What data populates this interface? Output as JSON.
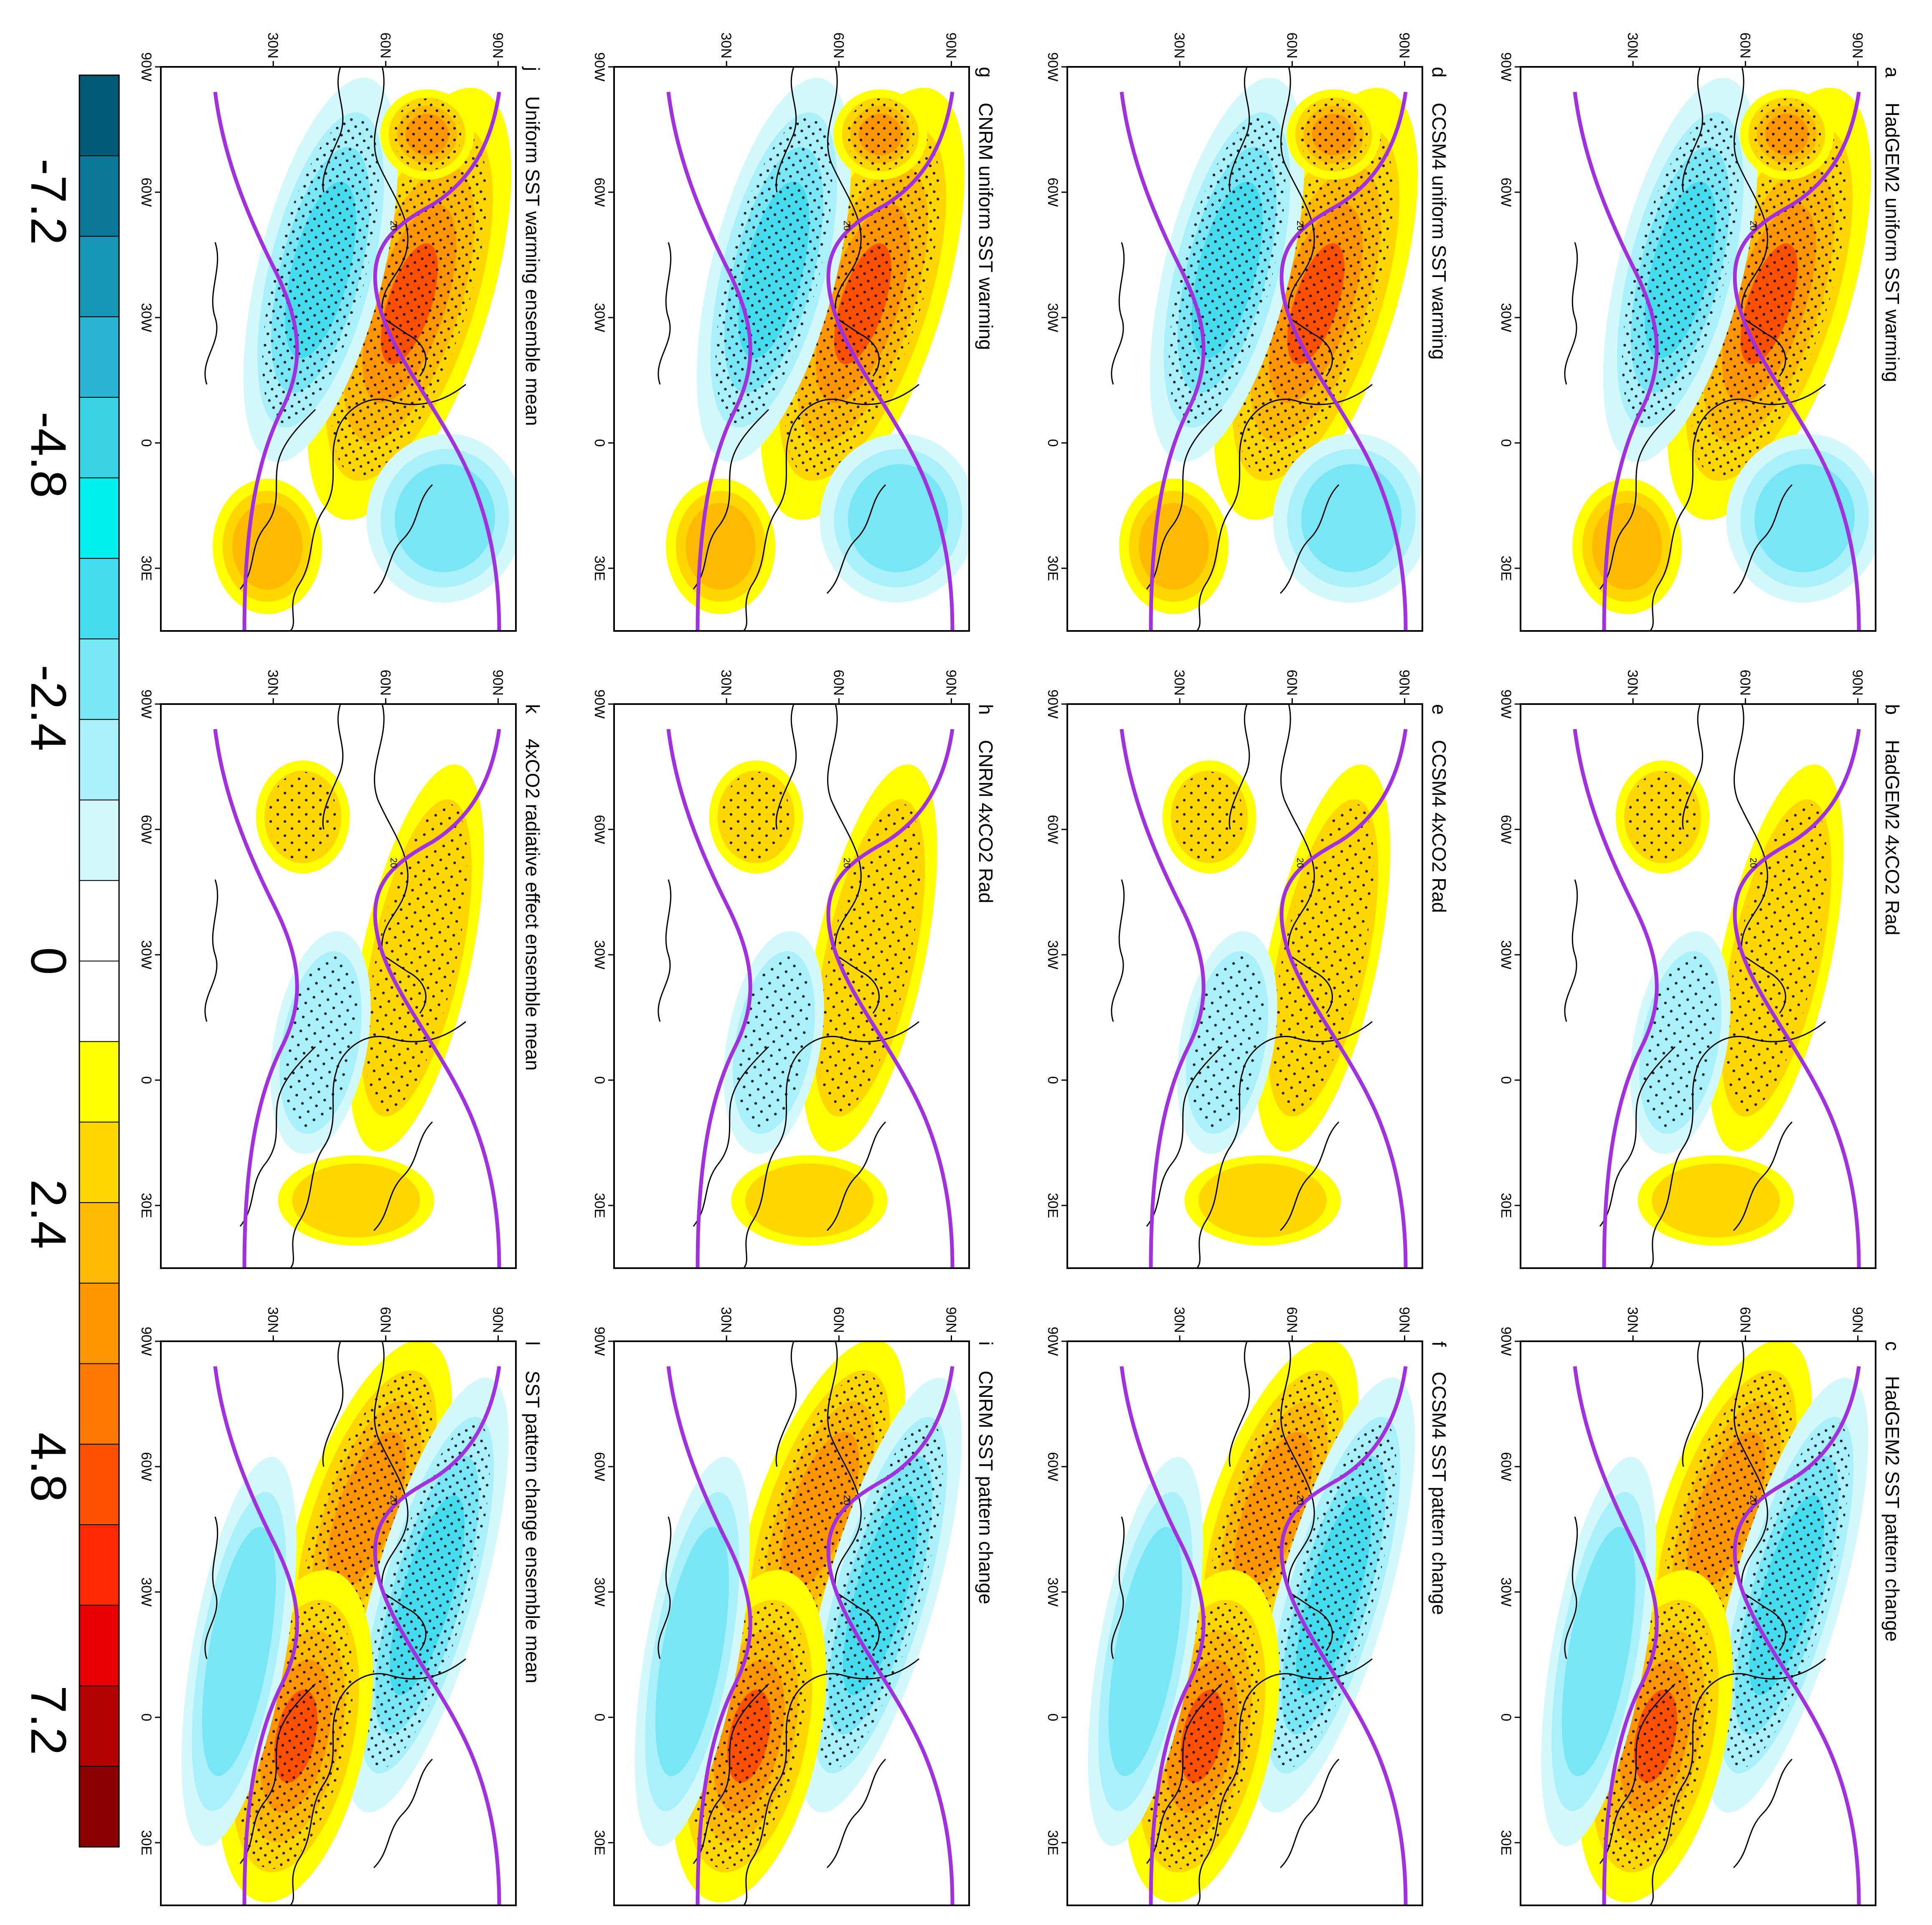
{
  "figure": {
    "orientation": "rotated 90 degrees clockwise",
    "rows": 4,
    "cols": 3
  },
  "chart_data": [
    {
      "type": "heatmap",
      "panel": "a",
      "title": "HadGEM2 uniform SST warming",
      "contour_label": "20",
      "lon_ticks": [
        "90W",
        "60W",
        "30W",
        "0",
        "30E"
      ],
      "lat_ticks": [
        "30N",
        "60N",
        "90N"
      ],
      "pattern": "uniform",
      "stippling": "dense"
    },
    {
      "type": "heatmap",
      "panel": "b",
      "title": "HadGEM2 4xCO2 Rad",
      "contour_label": "20",
      "lon_ticks": [
        "90W",
        "60W",
        "30W",
        "0",
        "30E"
      ],
      "lat_ticks": [
        "30N",
        "60N",
        "90N"
      ],
      "pattern": "rad",
      "stippling": "sparse"
    },
    {
      "type": "heatmap",
      "panel": "c",
      "title": "HadGEM2 SST pattern change",
      "contour_label": "20",
      "lon_ticks": [
        "90W",
        "60W",
        "30W",
        "0",
        "30E"
      ],
      "lat_ticks": [
        "30N",
        "60N",
        "90N"
      ],
      "pattern": "pattern",
      "stippling": "dense"
    },
    {
      "type": "heatmap",
      "panel": "d",
      "title": "CCSM4 uniform SST warming",
      "contour_label": "20",
      "lon_ticks": [
        "90W",
        "60W",
        "30W",
        "0",
        "30E"
      ],
      "lat_ticks": [
        "30N",
        "60N",
        "90N"
      ],
      "pattern": "uniform",
      "stippling": "dense"
    },
    {
      "type": "heatmap",
      "panel": "e",
      "title": "CCSM4 4xCO2 Rad",
      "contour_label": "20",
      "lon_ticks": [
        "90W",
        "60W",
        "30W",
        "0",
        "30E"
      ],
      "lat_ticks": [
        "30N",
        "60N",
        "90N"
      ],
      "pattern": "rad",
      "stippling": "sparse"
    },
    {
      "type": "heatmap",
      "panel": "f",
      "title": "CCSM4 SST pattern change",
      "contour_label": "20",
      "lon_ticks": [
        "90W",
        "60W",
        "30W",
        "0",
        "30E"
      ],
      "lat_ticks": [
        "30N",
        "60N",
        "90N"
      ],
      "pattern": "pattern",
      "stippling": "dense"
    },
    {
      "type": "heatmap",
      "panel": "g",
      "title": "CNRM uniform SST warming",
      "contour_label": "20",
      "lon_ticks": [
        "90W",
        "60W",
        "30W",
        "0",
        "30E"
      ],
      "lat_ticks": [
        "30N",
        "60N",
        "90N"
      ],
      "pattern": "uniform",
      "stippling": "dense"
    },
    {
      "type": "heatmap",
      "panel": "h",
      "title": "CNRM 4xCO2 Rad",
      "contour_label": "20",
      "lon_ticks": [
        "90W",
        "60W",
        "30W",
        "0",
        "30E"
      ],
      "lat_ticks": [
        "30N",
        "60N",
        "90N"
      ],
      "pattern": "rad",
      "stippling": "sparse"
    },
    {
      "type": "heatmap",
      "panel": "i",
      "title": "CNRM SST pattern change",
      "contour_label": "20",
      "lon_ticks": [
        "90W",
        "60W",
        "30W",
        "0",
        "30E"
      ],
      "lat_ticks": [
        "30N",
        "60N",
        "90N"
      ],
      "pattern": "pattern",
      "stippling": "dense"
    },
    {
      "type": "heatmap",
      "panel": "j",
      "title": "Uniform SST warming ensemble mean",
      "contour_label": "20",
      "lon_ticks": [
        "90W",
        "60W",
        "30W",
        "0",
        "30E"
      ],
      "lat_ticks": [
        "30N",
        "60N",
        "90N"
      ],
      "pattern": "uniform",
      "stippling": "dense"
    },
    {
      "type": "heatmap",
      "panel": "k",
      "title": "4xCO2 radiative effect ensemble mean",
      "contour_label": "20",
      "lon_ticks": [
        "90W",
        "60W",
        "30W",
        "0",
        "30E"
      ],
      "lat_ticks": [
        "30N",
        "60N",
        "90N"
      ],
      "pattern": "rad",
      "stippling": "sparse"
    },
    {
      "type": "heatmap",
      "panel": "l",
      "title": "SST pattern change ensemble mean",
      "contour_label": "20",
      "lon_ticks": [
        "90W",
        "60W",
        "30W",
        "0",
        "30E"
      ],
      "lat_ticks": [
        "30N",
        "60N",
        "90N"
      ],
      "pattern": "pattern",
      "stippling": "dense"
    }
  ],
  "colorbar": {
    "labels": [
      "-7.2",
      "-4.8",
      "-2.4",
      "0",
      "2.4",
      "4.8",
      "7.2"
    ],
    "colors": [
      "#005a78",
      "#0a7896",
      "#1496b4",
      "#28b4d2",
      "#3cd2e6",
      "#00f0f0",
      "#46dcf0",
      "#78e6f5",
      "#aaf0fa",
      "#d2f8fc",
      "#ffffff",
      "#ffffff",
      "#ffff00",
      "#ffd700",
      "#ffb900",
      "#ff9600",
      "#ff7800",
      "#ff5000",
      "#ff2800",
      "#e60000",
      "#b40000",
      "#8c0000"
    ]
  },
  "colors": {
    "positive": "#ff5000",
    "negative": "#28b4d2",
    "contour": "#a030e0",
    "coast": "#000000"
  }
}
